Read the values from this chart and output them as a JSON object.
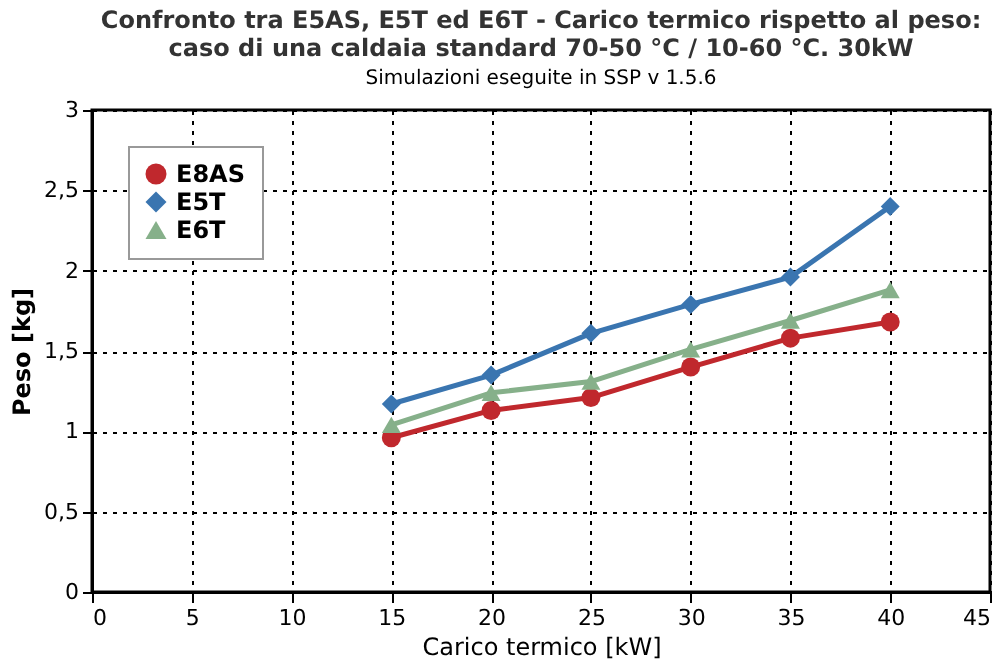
{
  "chart_data": {
    "type": "line",
    "title": [
      "Confronto tra E5AS, E5T ed E6T - Carico termico rispetto al peso:",
      "caso di una caldaia standard 70-50 °C / 10-60 °C. 30kW"
    ],
    "subtitle": "Simulazioni eseguite in SSP v 1.5.6",
    "xlabel": "Carico termico [kW]",
    "ylabel": "Peso [kg]",
    "x": [
      15,
      20,
      25,
      30,
      35,
      40
    ],
    "series": [
      {
        "name": "E8AS",
        "color": "#c0282d",
        "marker": "circle",
        "values": [
          0.96,
          1.13,
          1.21,
          1.4,
          1.58,
          1.68
        ]
      },
      {
        "name": "E5T",
        "color": "#3a75b0",
        "marker": "diamond",
        "values": [
          1.17,
          1.35,
          1.61,
          1.79,
          1.96,
          2.4
        ]
      },
      {
        "name": "E6T",
        "color": "#86b08a",
        "marker": "triangle",
        "values": [
          1.04,
          1.24,
          1.31,
          1.51,
          1.69,
          1.88
        ]
      }
    ],
    "xlim": [
      0,
      45
    ],
    "xticks": [
      0,
      5,
      10,
      15,
      20,
      25,
      30,
      35,
      40,
      45
    ],
    "ylim": [
      0,
      3
    ],
    "yticks": [
      0,
      {
        "value": 0.5,
        "label": "0,5"
      },
      1,
      {
        "value": 1.5,
        "label": "1,5"
      },
      2,
      {
        "value": 2.5,
        "label": "2,5"
      },
      3
    ],
    "grid": true,
    "legend": "top left",
    "line_style": "solid"
  }
}
